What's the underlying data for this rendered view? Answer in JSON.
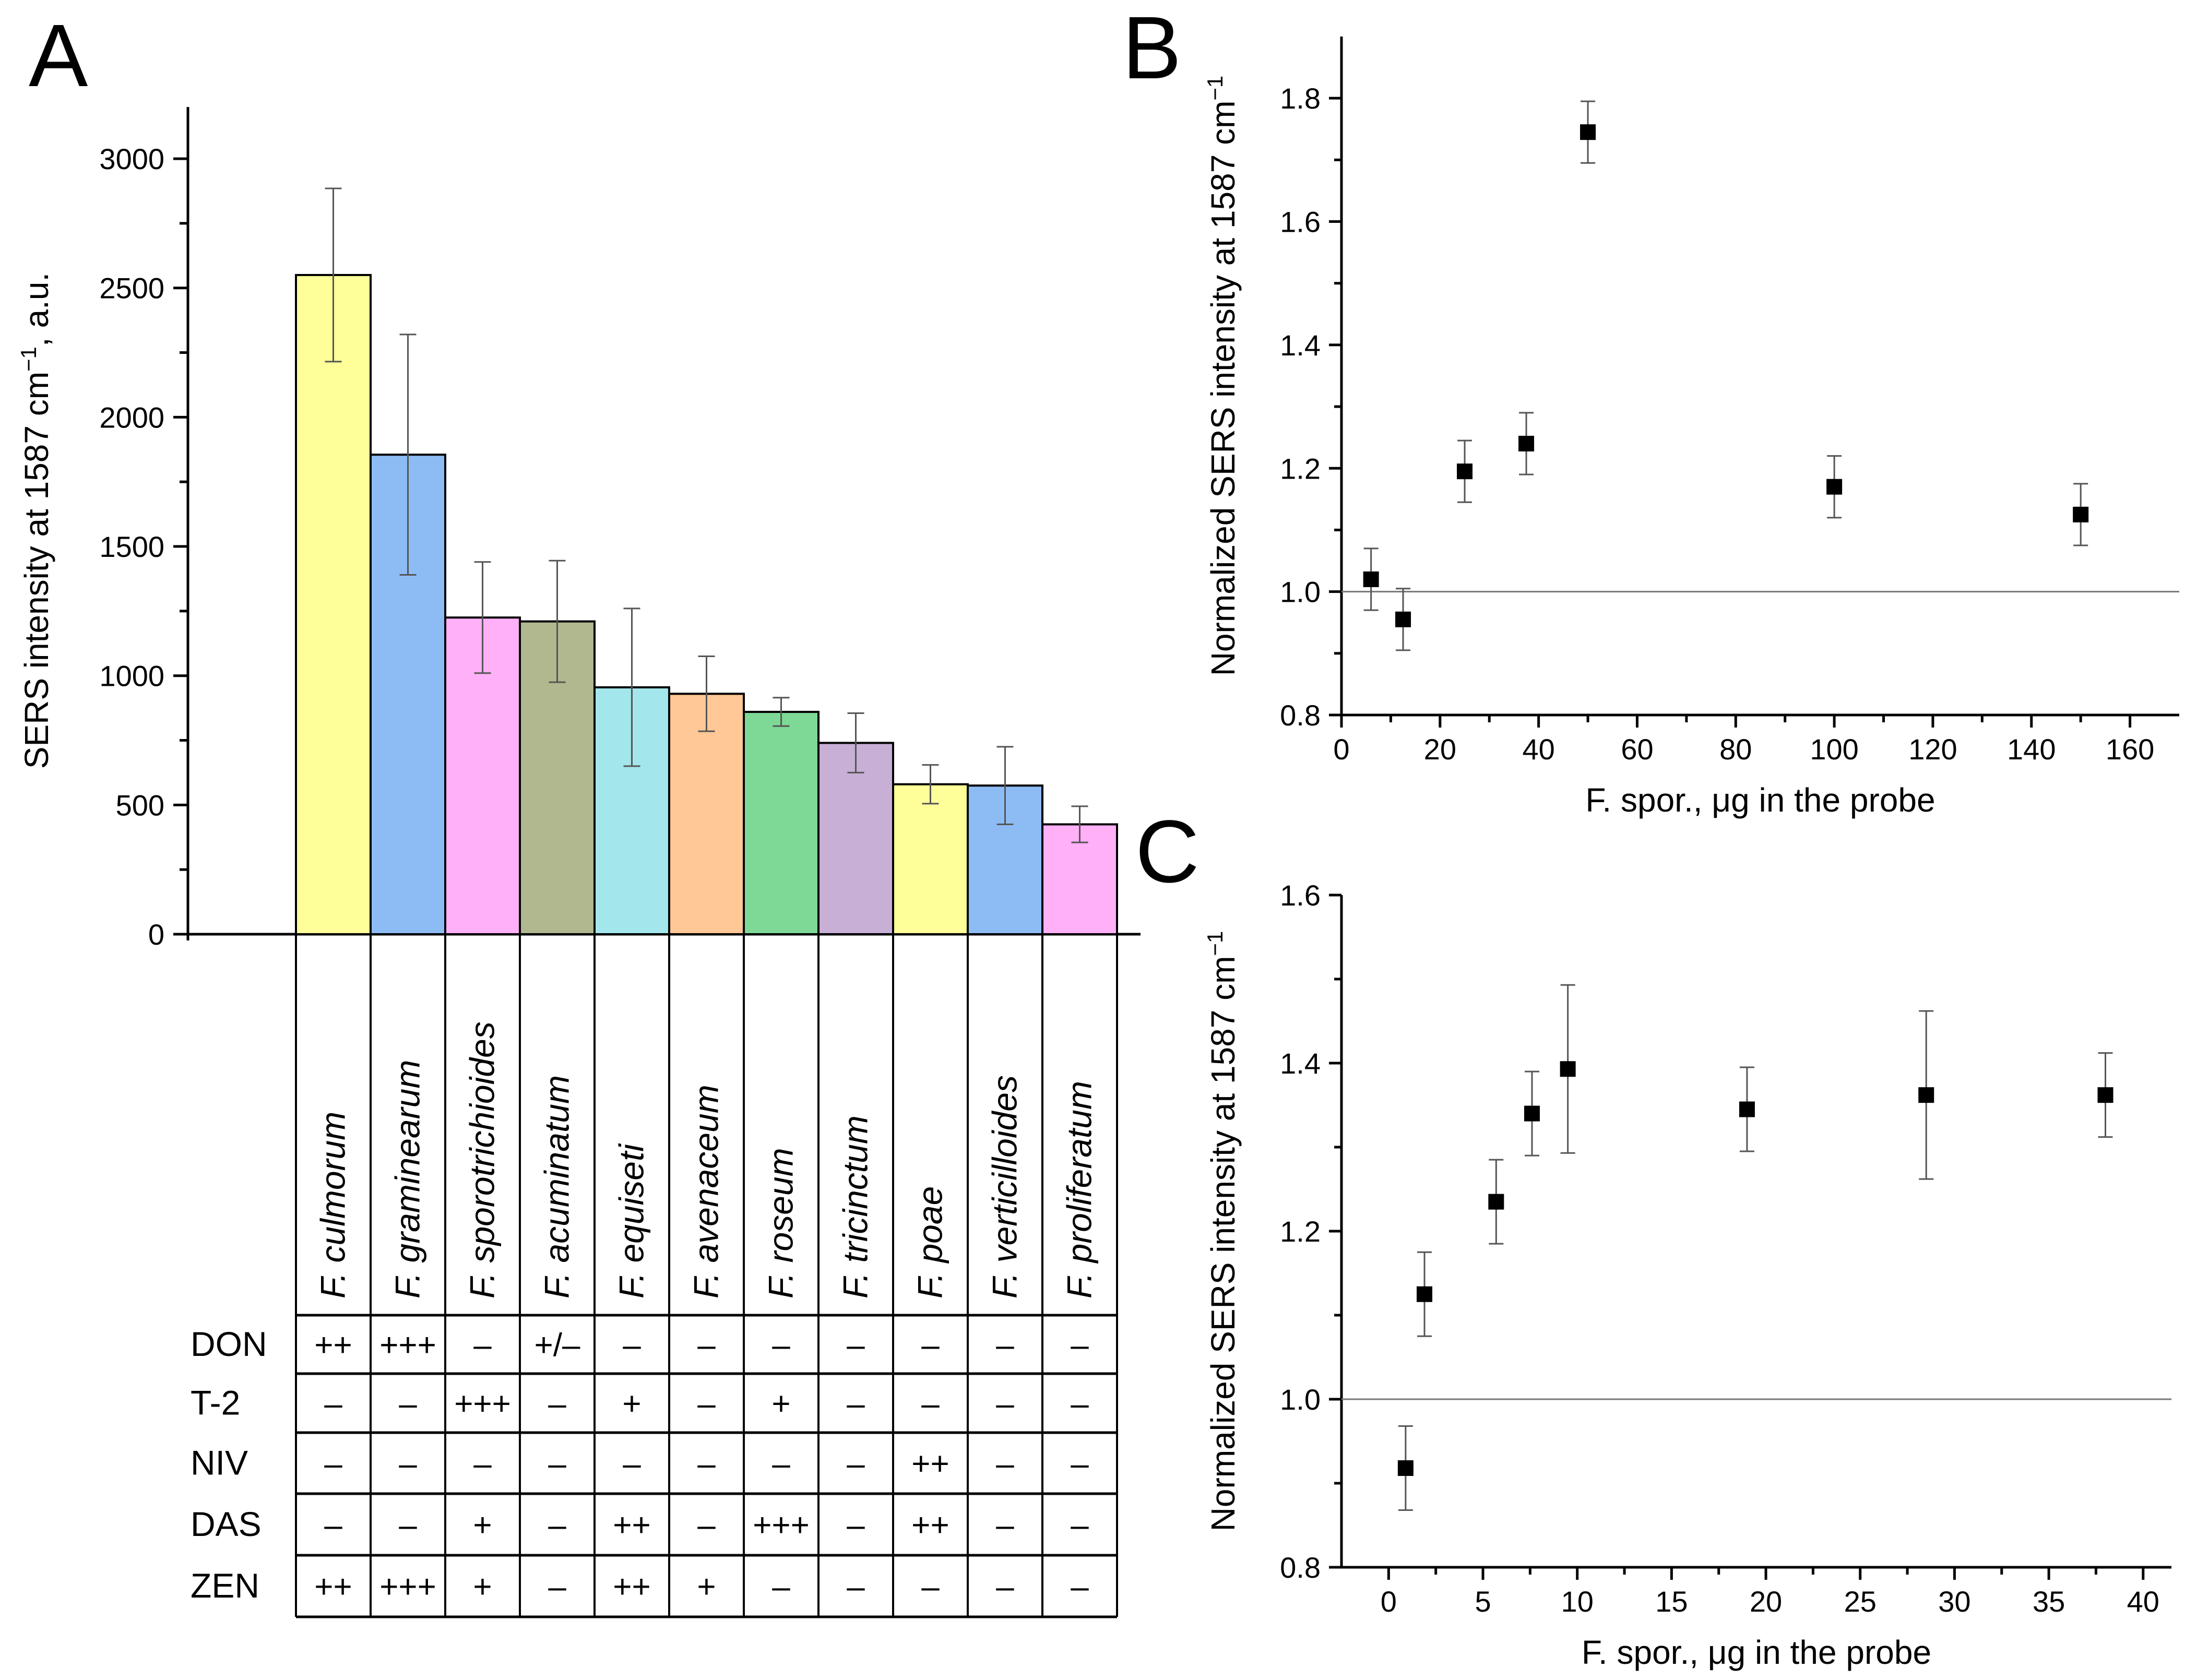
{
  "chart_data": [
    {
      "panel": "A",
      "type": "bar",
      "ylabel": "SERS intensity at 1587 cm",
      "ylabel_sup": "−1",
      "ylabel_suffix": ", a.u.",
      "ylim": [
        0,
        3200
      ],
      "yticks": [
        "0",
        "500",
        "1000",
        "1500",
        "2000",
        "2500",
        "3000"
      ],
      "categories": [
        "F. culmorum",
        "F. graminearum",
        "F. sporotrichioides",
        "F. acuminatum",
        "F. equiseti",
        "F. avenaceum",
        "F. roseum",
        "F. tricinctum",
        "F. poae",
        "F. verticilloides",
        "F. proliferatum"
      ],
      "values": [
        2550,
        1855,
        1225,
        1210,
        955,
        930,
        860,
        740,
        580,
        575,
        425
      ],
      "errors": [
        335,
        465,
        215,
        235,
        305,
        145,
        55,
        115,
        75,
        150,
        70
      ],
      "colors": [
        "#ffff99",
        "#8dbcf5",
        "#ffb0f7",
        "#b1b78e",
        "#a3e6ec",
        "#ffc896",
        "#7ed896",
        "#c8afd6",
        "#ffff99",
        "#8dbcf5",
        "#ffb0f7"
      ],
      "table": {
        "rows": [
          {
            "label": "DON",
            "cells": [
              "++",
              "+++",
              "–",
              "+/–",
              "–",
              "–",
              "–",
              "–",
              "–",
              "–",
              "–"
            ]
          },
          {
            "label": "T-2",
            "cells": [
              "–",
              "–",
              "+++",
              "–",
              "+",
              "–",
              "+",
              "–",
              "–",
              "–",
              "–"
            ]
          },
          {
            "label": "NIV",
            "cells": [
              "–",
              "–",
              "–",
              "–",
              "–",
              "–",
              "–",
              "–",
              "++",
              "–",
              "–"
            ]
          },
          {
            "label": "DAS",
            "cells": [
              "–",
              "–",
              "+",
              "–",
              "++",
              "–",
              "+++",
              "–",
              "++",
              "–",
              "–"
            ]
          },
          {
            "label": "ZEN",
            "cells": [
              "++",
              "+++",
              "+",
              "–",
              "++",
              "+",
              "–",
              "–",
              "–",
              "–",
              "–"
            ]
          }
        ]
      }
    },
    {
      "panel": "B",
      "type": "scatter",
      "xlabel": "F. spor., μg in the probe",
      "ylabel": "Normalized SERS intensity at 1587 cm",
      "ylabel_sup": "−1",
      "xlim": [
        0,
        170
      ],
      "ylim": [
        0.8,
        1.9
      ],
      "xticks": [
        "0",
        "20",
        "40",
        "60",
        "80",
        "100",
        "120",
        "140",
        "160"
      ],
      "yticks": [
        "0.8",
        "1.0",
        "1.2",
        "1.4",
        "1.6",
        "1.8"
      ],
      "reference_line": 1.0,
      "points": [
        {
          "x": 6,
          "y": 1.02,
          "err": 0.05
        },
        {
          "x": 12.5,
          "y": 0.955,
          "err": 0.05
        },
        {
          "x": 25,
          "y": 1.195,
          "err": 0.05
        },
        {
          "x": 37.5,
          "y": 1.24,
          "err": 0.05
        },
        {
          "x": 50,
          "y": 1.745,
          "err": 0.05
        },
        {
          "x": 100,
          "y": 1.17,
          "err": 0.05
        },
        {
          "x": 150,
          "y": 1.125,
          "err": 0.05
        }
      ]
    },
    {
      "panel": "C",
      "type": "scatter",
      "xlabel": "F. spor., μg in the probe",
      "ylabel": "Normalized SERS intensity at 1587 cm",
      "ylabel_sup": "−1",
      "xlim": [
        -2.5,
        41.5
      ],
      "ylim": [
        0.8,
        1.6
      ],
      "xticks": [
        "0",
        "5",
        "10",
        "15",
        "20",
        "25",
        "30",
        "35",
        "40"
      ],
      "yticks": [
        "0.8",
        "1.0",
        "1.2",
        "1.4",
        "1.6"
      ],
      "reference_line": 1.0,
      "points": [
        {
          "x": 0.9,
          "y": 0.918,
          "err": 0.05
        },
        {
          "x": 1.9,
          "y": 1.125,
          "err": 0.05
        },
        {
          "x": 5.7,
          "y": 1.235,
          "err": 0.05
        },
        {
          "x": 7.6,
          "y": 1.34,
          "err": 0.05
        },
        {
          "x": 9.5,
          "y": 1.393,
          "err": 0.1
        },
        {
          "x": 19,
          "y": 1.345,
          "err": 0.05
        },
        {
          "x": 28.5,
          "y": 1.362,
          "err": 0.1
        },
        {
          "x": 38,
          "y": 1.362,
          "err": 0.05
        }
      ]
    }
  ]
}
